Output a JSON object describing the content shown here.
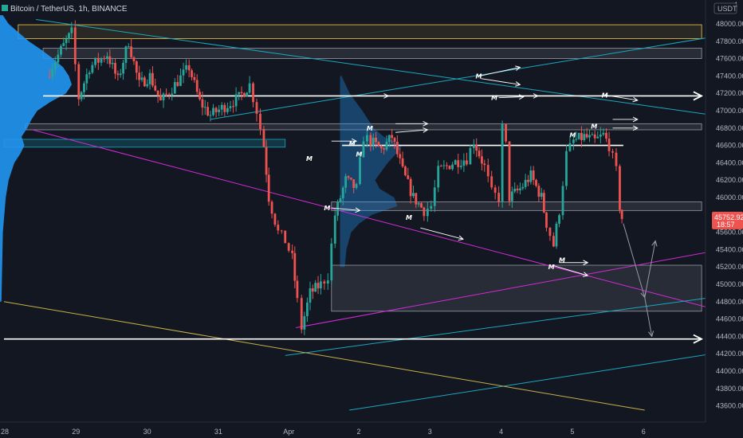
{
  "header": {
    "symbol_text": "Bitcoin / TetherUS, 1h, BINANCE",
    "currency_badge": "USDT",
    "axis_top_digit": "4"
  },
  "colors": {
    "background": "#131722",
    "bull": "#26a69a",
    "bear": "#ef5350",
    "profile": "#2196f3",
    "zone_yellow": "#f2c744",
    "trend_cyan": "#19a8c0",
    "trend_magenta": "#d22bd6",
    "trend_yellow": "#c8b04a",
    "price_label": "#ef5350"
  },
  "chart_data": {
    "type": "candlestick",
    "exchange": "BINANCE",
    "pair": "BTC/USDT",
    "timeframe": "1h",
    "y_ticks": [
      48000,
      47800,
      47600,
      47400,
      47200,
      47000,
      46800,
      46600,
      46400,
      46200,
      46000,
      45800,
      45600,
      45400,
      45200,
      45000,
      44800,
      44600,
      44400,
      44200,
      44000,
      43800,
      43600
    ],
    "y_tick_labels": [
      "48000.00",
      "47800.00",
      "47600.00",
      "47400.00",
      "47200.00",
      "47000.00",
      "46800.00",
      "46600.00",
      "46400.00",
      "46200.00",
      "46000.00",
      "45800.00",
      "45600.00",
      "45400.00",
      "45200.00",
      "45000.00",
      "44800.00",
      "44600.00",
      "44400.00",
      "44200.00",
      "44000.00",
      "43800.00",
      "43600.00"
    ],
    "ylim": [
      43500,
      48150
    ],
    "x_ticks": [
      {
        "label": "28",
        "day": 0
      },
      {
        "label": "29",
        "day": 1
      },
      {
        "label": "30",
        "day": 2
      },
      {
        "label": "31",
        "day": 3
      },
      {
        "label": "Apr",
        "day": 4
      },
      {
        "label": "2",
        "day": 5
      },
      {
        "label": "3",
        "day": 6
      },
      {
        "label": "4",
        "day": 7
      },
      {
        "label": "5",
        "day": 8
      },
      {
        "label": "6",
        "day": 9
      }
    ],
    "last_price": "45752.92",
    "countdown": "18:57",
    "candle_path": [
      [
        0.6,
        47400
      ],
      [
        0.8,
        47700
      ],
      [
        0.95,
        47900
      ],
      [
        1.05,
        47150
      ],
      [
        1.2,
        47500
      ],
      [
        1.45,
        47650
      ],
      [
        1.6,
        47350
      ],
      [
        1.75,
        47800
      ],
      [
        1.9,
        47300
      ],
      [
        2.05,
        47400
      ],
      [
        2.2,
        47100
      ],
      [
        2.4,
        47300
      ],
      [
        2.6,
        47500
      ],
      [
        2.75,
        47100
      ],
      [
        2.9,
        46950
      ],
      [
        3.1,
        47050
      ],
      [
        3.3,
        47150
      ],
      [
        3.45,
        47300
      ],
      [
        3.55,
        47000
      ],
      [
        3.65,
        46600
      ],
      [
        3.72,
        46000
      ],
      [
        3.85,
        45600
      ],
      [
        3.95,
        45500
      ],
      [
        4.05,
        45300
      ],
      [
        4.12,
        44800
      ],
      [
        4.18,
        44500
      ],
      [
        4.3,
        44900
      ],
      [
        4.45,
        45000
      ],
      [
        4.55,
        45100
      ],
      [
        4.65,
        45800
      ],
      [
        4.8,
        46200
      ],
      [
        4.95,
        46100
      ],
      [
        5.05,
        46700
      ],
      [
        5.15,
        46650
      ],
      [
        5.3,
        46550
      ],
      [
        5.45,
        46700
      ],
      [
        5.6,
        46300
      ],
      [
        5.75,
        46000
      ],
      [
        5.9,
        45850
      ],
      [
        6.0,
        45900
      ],
      [
        6.1,
        46300
      ],
      [
        6.3,
        46400
      ],
      [
        6.5,
        46450
      ],
      [
        6.6,
        46650
      ],
      [
        6.75,
        46350
      ],
      [
        6.85,
        46050
      ],
      [
        6.95,
        46000
      ],
      [
        7.0,
        46800
      ],
      [
        7.05,
        46600
      ],
      [
        7.1,
        46000
      ],
      [
        7.25,
        46100
      ],
      [
        7.4,
        46250
      ],
      [
        7.55,
        46000
      ],
      [
        7.62,
        45700
      ],
      [
        7.72,
        45450
      ],
      [
        7.8,
        45850
      ],
      [
        7.9,
        46500
      ],
      [
        8.0,
        46650
      ],
      [
        8.15,
        46700
      ],
      [
        8.3,
        46650
      ],
      [
        8.42,
        46720
      ],
      [
        8.5,
        46600
      ],
      [
        8.6,
        46300
      ],
      [
        8.65,
        45900
      ],
      [
        8.68,
        45752.92
      ]
    ],
    "zones": [
      {
        "from": 47830,
        "to": 47990,
        "d0": 0.2,
        "d1": 9.8,
        "style": "yellow"
      },
      {
        "from": 47600,
        "to": 47720,
        "d0": 0.55,
        "d1": 9.8,
        "style": "gray"
      },
      {
        "from": 46780,
        "to": 46850,
        "d0": 0.3,
        "d1": 9.8,
        "style": "gray"
      },
      {
        "from": 46580,
        "to": 46670,
        "d0": 0.0,
        "d1": 3.95,
        "style": "cyan"
      },
      {
        "from": 45850,
        "to": 45950,
        "d0": 4.6,
        "d1": 9.8,
        "style": "gray"
      },
      {
        "from": 44690,
        "to": 45220,
        "d0": 4.6,
        "d1": 9.8,
        "style": "gray"
      }
    ],
    "hlines": [
      {
        "price": 47170,
        "d0": 0.55,
        "d1": 9.8,
        "arrow": true
      },
      {
        "price": 46600,
        "d0": 4.75,
        "d1": 8.7,
        "arrow": false
      },
      {
        "price": 44370,
        "d0": 0.0,
        "d1": 9.8,
        "arrow": true
      }
    ],
    "trendlines": [
      {
        "d0": 0.45,
        "p0": 48050,
        "d1": 9.95,
        "p1": 46950,
        "style": "cyan"
      },
      {
        "d0": 2.9,
        "p0": 46900,
        "d1": 9.95,
        "p1": 47850,
        "style": "cyan"
      },
      {
        "d0": 0.4,
        "p0": 46780,
        "d1": 9.95,
        "p1": 44720,
        "style": "magenta"
      },
      {
        "d0": 4.1,
        "p0": 44500,
        "d1": 9.95,
        "p1": 45380,
        "style": "magenta"
      },
      {
        "d0": 3.95,
        "p0": 44180,
        "d1": 9.95,
        "p1": 44850,
        "style": "cyan"
      },
      {
        "d0": 4.85,
        "p0": 43550,
        "d1": 9.95,
        "p1": 44200,
        "style": "cyan"
      },
      {
        "d0": 0.0,
        "p0": 44800,
        "d1": 9.0,
        "p1": 43550,
        "style": "yellow"
      }
    ],
    "marks": [
      [
        4.3,
        46450
      ],
      [
        4.55,
        45880
      ],
      [
        4.9,
        46620
      ],
      [
        5.0,
        46500
      ],
      [
        5.15,
        46800
      ],
      [
        5.7,
        45770
      ],
      [
        6.68,
        47400
      ],
      [
        6.9,
        47150
      ],
      [
        7.7,
        45200
      ],
      [
        7.85,
        45280
      ],
      [
        8.45,
        47180
      ],
      [
        8.0,
        46720
      ],
      [
        8.3,
        46820
      ]
    ],
    "arrows": [
      [
        6.68,
        47400,
        7.25,
        47500
      ],
      [
        6.7,
        47370,
        7.25,
        47300
      ],
      [
        6.95,
        47150,
        7.3,
        47160
      ],
      [
        7.7,
        45220,
        8.2,
        45100
      ],
      [
        7.8,
        45250,
        8.2,
        45250
      ],
      [
        5.85,
        45650,
        6.45,
        45520
      ],
      [
        5.5,
        46850,
        5.95,
        46850
      ],
      [
        5.5,
        46750,
        5.95,
        46780
      ],
      [
        4.6,
        46650,
        4.95,
        46650
      ],
      [
        4.6,
        45880,
        5.0,
        45850
      ],
      [
        8.45,
        47180,
        8.9,
        47120
      ],
      [
        8.55,
        46900,
        8.9,
        46900
      ],
      [
        8.55,
        46800,
        8.9,
        46800
      ],
      [
        5.15,
        47170,
        5.4,
        47170
      ],
      [
        7.25,
        47170,
        7.5,
        47170
      ]
    ],
    "projection": [
      [
        8.7,
        45700,
        9.0,
        44850
      ],
      [
        9.0,
        44850,
        9.15,
        45500
      ],
      [
        9.0,
        44850,
        9.1,
        44400
      ]
    ],
    "left_profile": [
      [
        48100,
        4
      ],
      [
        48000,
        12
      ],
      [
        47900,
        26
      ],
      [
        47800,
        40
      ],
      [
        47700,
        58
      ],
      [
        47600,
        74
      ],
      [
        47500,
        88
      ],
      [
        47400,
        96
      ],
      [
        47300,
        100
      ],
      [
        47200,
        92
      ],
      [
        47100,
        70
      ],
      [
        47000,
        52
      ],
      [
        46900,
        44
      ],
      [
        46800,
        38
      ],
      [
        46700,
        30
      ],
      [
        46600,
        34
      ],
      [
        46500,
        28
      ],
      [
        46400,
        20
      ],
      [
        46300,
        16
      ],
      [
        46200,
        12
      ],
      [
        46000,
        8
      ],
      [
        45800,
        6
      ],
      [
        45600,
        4
      ],
      [
        45200,
        3
      ],
      [
        44800,
        2
      ]
    ],
    "mid_profile": [
      [
        47400,
        2
      ],
      [
        47200,
        12
      ],
      [
        47000,
        28
      ],
      [
        46800,
        42
      ],
      [
        46700,
        55
      ],
      [
        46600,
        78
      ],
      [
        46500,
        70
      ],
      [
        46400,
        60
      ],
      [
        46300,
        52
      ],
      [
        46200,
        44
      ],
      [
        46100,
        50
      ],
      [
        46000,
        68
      ],
      [
        45900,
        72
      ],
      [
        45800,
        40
      ],
      [
        45700,
        24
      ],
      [
        45600,
        14
      ],
      [
        45400,
        8
      ],
      [
        45200,
        6
      ]
    ]
  }
}
